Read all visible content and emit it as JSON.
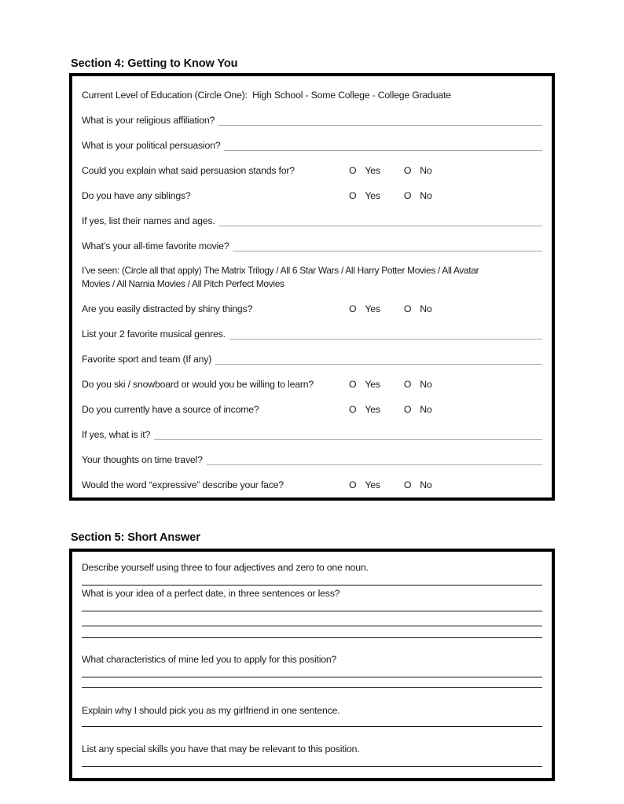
{
  "colors": {
    "background": "#ffffff",
    "text": "#1a1a1a",
    "box_border": "#000000",
    "fill_line": "#a6a6a6",
    "answer_line": "#151515"
  },
  "section4": {
    "heading": "Section 4: Getting to Know You",
    "yes_label": "Yes",
    "no_label": "No",
    "circle_glyph": "O",
    "rows": [
      {
        "type": "text",
        "text": "Current Level of Education (Circle One):  High School - Some College - College Graduate"
      },
      {
        "type": "fill",
        "label": "What is your religious affiliation?"
      },
      {
        "type": "fill",
        "label": "What is your political persuasion?"
      },
      {
        "type": "yesno",
        "label": "Could you explain what said persuasion stands for?"
      },
      {
        "type": "yesno",
        "label": "Do you have any siblings?"
      },
      {
        "type": "fill",
        "label": "If yes, list their names and ages."
      },
      {
        "type": "fill",
        "label": "What’s your all-time favorite movie?"
      },
      {
        "type": "para",
        "lines": [
          "I’ve seen: (Circle all that apply) The Matrix Trilogy / All 6 Star Wars / All Harry Potter Movies / All Avatar",
          "Movies / All Narnia Movies / All Pitch Perfect Movies"
        ]
      },
      {
        "type": "yesno",
        "label": "Are you easily distracted by shiny things?"
      },
      {
        "type": "fill",
        "label": "List your 2 favorite musical genres."
      },
      {
        "type": "fill",
        "label": "Favorite sport and team (If any)"
      },
      {
        "type": "yesno",
        "label": "Do you ski / snowboard or would you be willing to learn?"
      },
      {
        "type": "yesno",
        "label": "Do you currently have a source of income?"
      },
      {
        "type": "fill",
        "label": "If yes, what is it?"
      },
      {
        "type": "fill",
        "label": "Your thoughts on time travel?"
      },
      {
        "type": "yesno",
        "label": "Would the word “expressive” describe your face?"
      }
    ]
  },
  "section5": {
    "heading": "Section 5: Short Answer",
    "blocks": [
      {
        "question": "Describe yourself using three to four adjectives and zero to one noun.",
        "answer_lines": 1
      },
      {
        "question": "What is your idea of a perfect date, in three sentences or less?",
        "answer_lines": 3
      },
      {
        "question": "What characteristics of mine led you to apply for this position?",
        "answer_lines": 2
      },
      {
        "question": "Explain why I should pick you as my girlfriend in one sentence.",
        "answer_lines": 1
      },
      {
        "question": "List any special skills you have that may be relevant to this position.",
        "answer_lines": 1
      }
    ]
  }
}
